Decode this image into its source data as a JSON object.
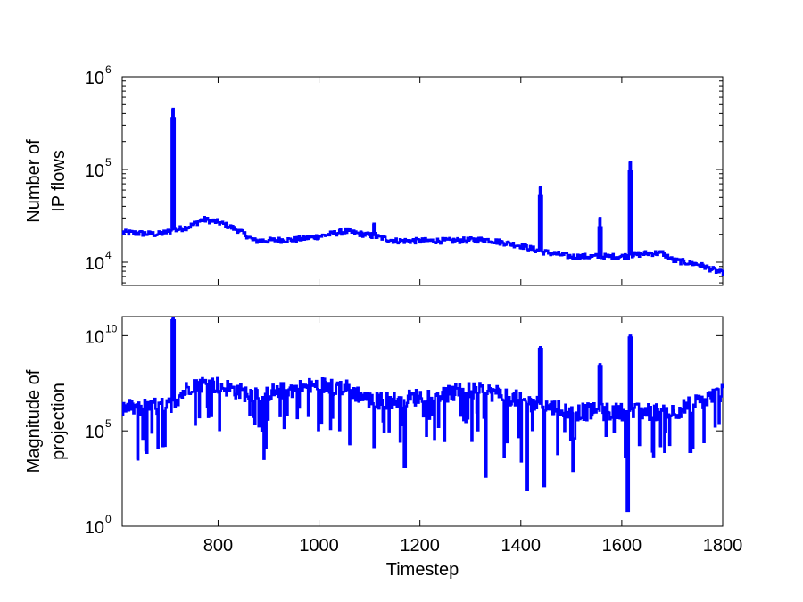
{
  "chart_data": [
    {
      "type": "line",
      "ylabel": [
        "Number of",
        "IP flows"
      ],
      "xlim": [
        610,
        1800
      ],
      "yscale": "log",
      "ylim_log10": [
        3.75,
        6
      ],
      "yticks": [
        {
          "base": "10",
          "exp": "4",
          "log": 4
        },
        {
          "base": "10",
          "exp": "5",
          "log": 5
        },
        {
          "base": "10",
          "exp": "6",
          "log": 6
        }
      ],
      "x_tick_labels_shown": false,
      "line_color": "#0000ff",
      "baseline": [
        [
          610,
          21000
        ],
        [
          680,
          20000
        ],
        [
          740,
          24000
        ],
        [
          770,
          29000
        ],
        [
          800,
          27000
        ],
        [
          840,
          22000
        ],
        [
          870,
          17000
        ],
        [
          950,
          17500
        ],
        [
          1000,
          19000
        ],
        [
          1050,
          21500
        ],
        [
          1100,
          19500
        ],
        [
          1150,
          17000
        ],
        [
          1250,
          17000
        ],
        [
          1330,
          17500
        ],
        [
          1400,
          15000
        ],
        [
          1440,
          13000
        ],
        [
          1500,
          11500
        ],
        [
          1600,
          11500
        ],
        [
          1650,
          12500
        ],
        [
          1680,
          12500
        ],
        [
          1700,
          10500
        ],
        [
          1750,
          9500
        ],
        [
          1800,
          7500
        ]
      ],
      "spikes": [
        {
          "x": 710,
          "y": 450000
        },
        {
          "x": 1438,
          "y": 65000
        },
        {
          "x": 1556,
          "y": 30000
        },
        {
          "x": 1616,
          "y": 120000
        },
        {
          "x": 1108,
          "y": 26000
        }
      ]
    },
    {
      "type": "line",
      "ylabel": [
        "Magnitude of",
        "projection"
      ],
      "xlabel": "Timestep",
      "xlim": [
        610,
        1800
      ],
      "xticks": [
        800,
        1000,
        1200,
        1400,
        1600,
        1800
      ],
      "yscale": "log",
      "ylim_log10": [
        0,
        11
      ],
      "yticks": [
        {
          "base": "10",
          "exp": "0",
          "log": 0
        },
        {
          "base": "10",
          "exp": "5",
          "log": 5
        },
        {
          "base": "10",
          "exp": "10",
          "log": 10
        }
      ],
      "line_color": "#0000ff",
      "baseline_log10": [
        [
          610,
          6.2
        ],
        [
          700,
          6.3
        ],
        [
          750,
          7.5
        ],
        [
          800,
          7.4
        ],
        [
          850,
          7.0
        ],
        [
          900,
          7.0
        ],
        [
          1000,
          7.4
        ],
        [
          1050,
          7.3
        ],
        [
          1100,
          6.6
        ],
        [
          1150,
          6.6
        ],
        [
          1200,
          6.8
        ],
        [
          1300,
          7.1
        ],
        [
          1350,
          7.0
        ],
        [
          1400,
          6.6
        ],
        [
          1500,
          6.0
        ],
        [
          1600,
          6.0
        ],
        [
          1700,
          6.0
        ],
        [
          1800,
          7.0
        ]
      ],
      "spikes_log10": [
        {
          "x": 710,
          "y": 10.9
        },
        {
          "x": 1438,
          "y": 9.4
        },
        {
          "x": 1556,
          "y": 8.5
        },
        {
          "x": 1616,
          "y": 10.0
        }
      ],
      "dips_log10": [
        {
          "x": 1611,
          "y": 0.8
        },
        {
          "x": 1411,
          "y": 1.9
        },
        {
          "x": 1445,
          "y": 2.1
        },
        {
          "x": 1330,
          "y": 2.6
        },
        {
          "x": 1169,
          "y": 3.1
        },
        {
          "x": 893,
          "y": 4.1
        },
        {
          "x": 640,
          "y": 3.5
        },
        {
          "x": 690,
          "y": 4.2
        },
        {
          "x": 1060,
          "y": 4.3
        },
        {
          "x": 1503,
          "y": 2.9
        },
        {
          "x": 1735,
          "y": 3.9
        },
        {
          "x": 1676,
          "y": 4.2
        }
      ]
    }
  ]
}
